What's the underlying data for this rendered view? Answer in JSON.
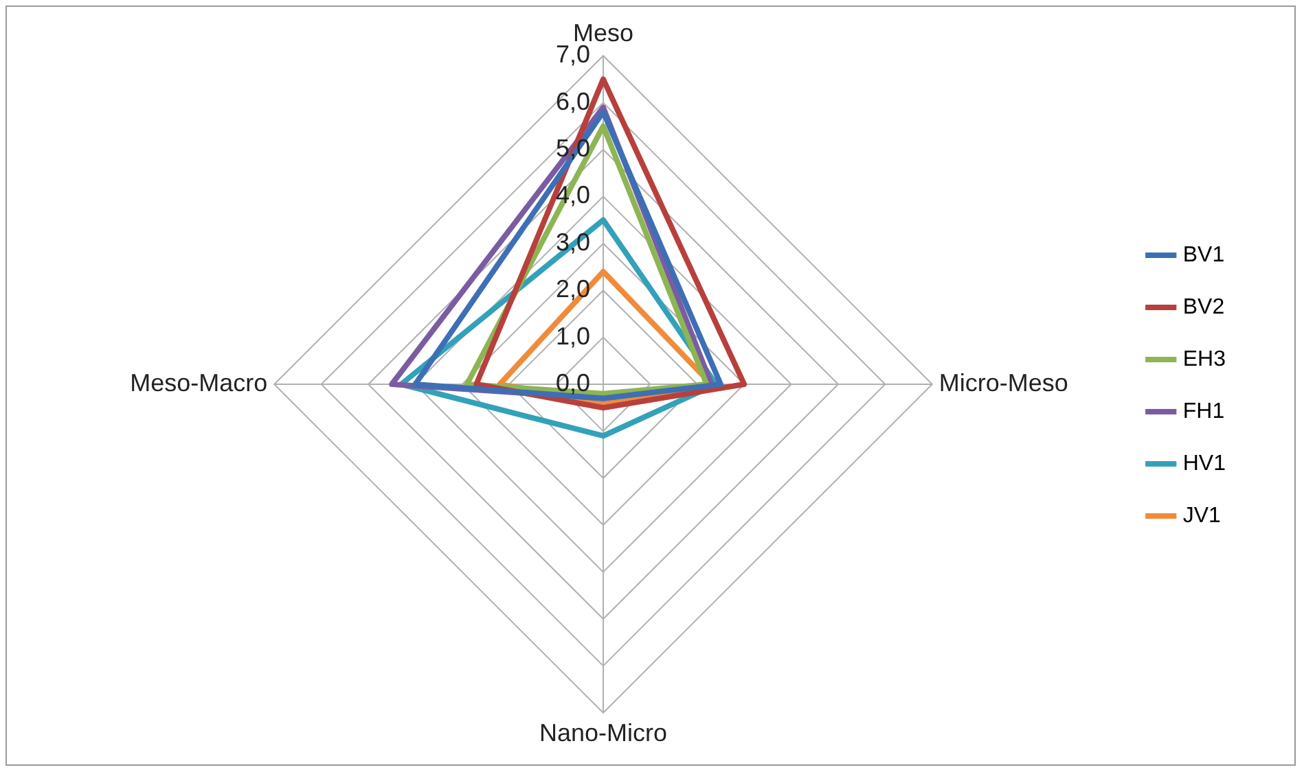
{
  "chart_data": {
    "type": "radar",
    "categories": [
      "Meso",
      "Micro-Meso",
      "Nano-Micro",
      "Meso-Macro"
    ],
    "series": [
      {
        "name": "BV1",
        "color": "#3d6fb5",
        "values": [
          5.8,
          2.5,
          0.3,
          4.0
        ]
      },
      {
        "name": "BV2",
        "color": "#b8403c",
        "values": [
          6.5,
          3.0,
          0.5,
          2.7
        ]
      },
      {
        "name": "EH3",
        "color": "#8db553",
        "values": [
          5.5,
          2.2,
          0.2,
          2.9
        ]
      },
      {
        "name": "FH1",
        "color": "#7b5ca2",
        "values": [
          5.9,
          2.3,
          0.3,
          4.5
        ]
      },
      {
        "name": "HV1",
        "color": "#33a1ba",
        "values": [
          3.5,
          2.4,
          1.1,
          4.3
        ]
      },
      {
        "name": "JV1",
        "color": "#f08b3b",
        "values": [
          2.4,
          2.3,
          0.4,
          2.2
        ]
      }
    ],
    "ylim": [
      0,
      7
    ],
    "yticks": [
      {
        "value": 0,
        "label": "0,0"
      },
      {
        "value": 1,
        "label": "1,0"
      },
      {
        "value": 2,
        "label": "2,0"
      },
      {
        "value": 3,
        "label": "3,0"
      },
      {
        "value": 4,
        "label": "4,0"
      },
      {
        "value": 5,
        "label": "5,0"
      },
      {
        "value": 6,
        "label": "6,0"
      },
      {
        "value": 7,
        "label": "7,0"
      }
    ],
    "grid": true,
    "legend": "right",
    "marker": "none"
  }
}
